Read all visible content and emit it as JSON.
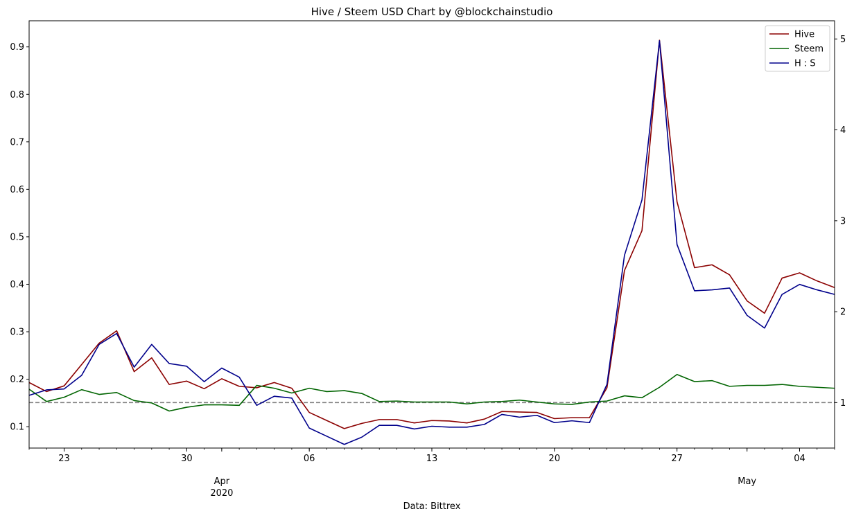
{
  "chart_data": {
    "type": "line",
    "title": "Hive / Steem USD Chart by @blockchainstudio",
    "xlabel": "Data: Bittrex",
    "x_start": "2020-03-21",
    "x_end": "2020-05-06",
    "x_ticks_major": [
      {
        "date": "2020-03-23",
        "label": "23"
      },
      {
        "date": "2020-03-30",
        "label": "30"
      },
      {
        "date": "2020-04-06",
        "label": "06"
      },
      {
        "date": "2020-04-13",
        "label": "13"
      },
      {
        "date": "2020-04-20",
        "label": "20"
      },
      {
        "date": "2020-04-27",
        "label": "27"
      },
      {
        "date": "2020-05-04",
        "label": "04"
      }
    ],
    "x_month_labels": [
      {
        "date": "2020-04-01",
        "label": "Apr",
        "sub": "2020"
      },
      {
        "date": "2020-05-01",
        "label": "May",
        "sub": ""
      }
    ],
    "y_left": {
      "range": [
        0.055,
        0.955
      ],
      "ticks": [
        0.1,
        0.2,
        0.3,
        0.4,
        0.5,
        0.6,
        0.7,
        0.8,
        0.9
      ],
      "tick_labels": [
        "0.1",
        "0.2",
        "0.3",
        "0.4",
        "0.5",
        "0.6",
        "0.7",
        "0.8",
        "0.9"
      ]
    },
    "y_right": {
      "range": [
        0.5,
        5.2
      ],
      "ticks": [
        1,
        2,
        3,
        4,
        5
      ],
      "tick_labels": [
        "1",
        "2",
        "3",
        "4",
        "5"
      ]
    },
    "reference_line": {
      "axis": "right",
      "value": 1.0,
      "style": "dashed",
      "color": "#808080"
    },
    "legend": {
      "position": "top-right",
      "entries": [
        "Hive",
        "Steem",
        "H : S"
      ]
    },
    "series": [
      {
        "name": "Hive",
        "axis": "left",
        "color": "#8b0000",
        "values": [
          0.193,
          0.174,
          0.186,
          0.231,
          0.276,
          0.302,
          0.216,
          0.245,
          0.189,
          0.196,
          0.18,
          0.201,
          0.185,
          0.182,
          0.193,
          0.181,
          0.13,
          0.113,
          0.096,
          0.107,
          0.115,
          0.115,
          0.108,
          0.113,
          0.112,
          0.108,
          0.116,
          0.132,
          0.131,
          0.13,
          0.117,
          0.119,
          0.119,
          0.182,
          0.429,
          0.513,
          0.914,
          0.574,
          0.435,
          0.441,
          0.42,
          0.365,
          0.339,
          0.413,
          0.424,
          0.407,
          0.393
        ]
      },
      {
        "name": "Steem",
        "axis": "left",
        "color": "#006400",
        "values": [
          0.179,
          0.153,
          0.162,
          0.178,
          0.168,
          0.172,
          0.155,
          0.15,
          0.133,
          0.141,
          0.146,
          0.146,
          0.145,
          0.187,
          0.181,
          0.171,
          0.181,
          0.174,
          0.176,
          0.17,
          0.153,
          0.154,
          0.152,
          0.152,
          0.152,
          0.148,
          0.152,
          0.153,
          0.156,
          0.152,
          0.148,
          0.147,
          0.152,
          0.154,
          0.165,
          0.161,
          0.183,
          0.21,
          0.195,
          0.197,
          0.185,
          0.187,
          0.187,
          0.189,
          0.185,
          0.183,
          0.181
        ]
      },
      {
        "name": "H : S",
        "axis": "right",
        "color": "#00008b",
        "values": [
          1.08,
          1.14,
          1.15,
          1.3,
          1.64,
          1.76,
          1.39,
          1.64,
          1.43,
          1.4,
          1.23,
          1.38,
          1.28,
          0.97,
          1.07,
          1.05,
          0.72,
          0.63,
          0.54,
          0.62,
          0.75,
          0.75,
          0.71,
          0.74,
          0.73,
          0.73,
          0.76,
          0.87,
          0.84,
          0.86,
          0.78,
          0.8,
          0.78,
          1.2,
          2.62,
          3.23,
          4.98,
          2.74,
          2.23,
          2.24,
          2.26,
          1.96,
          1.82,
          2.19,
          2.3,
          2.24,
          2.19
        ]
      }
    ]
  }
}
